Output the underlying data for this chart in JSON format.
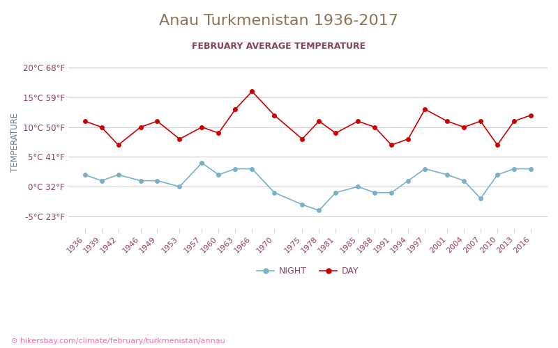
{
  "title": "Anau Turkmenistan 1936-2017",
  "subtitle": "FEBRUARY AVERAGE TEMPERATURE",
  "ylabel": "TEMPERATURE",
  "xlabel_url": "hikersbay.com/climate/february/turkmenistan/annau",
  "yticks_c": [
    20,
    15,
    10,
    5,
    0,
    -5
  ],
  "yticks_f": [
    68,
    59,
    50,
    41,
    32,
    23
  ],
  "ylim": [
    -7,
    22
  ],
  "years": [
    1936,
    1939,
    1942,
    1946,
    1949,
    1953,
    1957,
    1960,
    1963,
    1966,
    1970,
    1975,
    1978,
    1981,
    1985,
    1988,
    1991,
    1994,
    1997,
    2001,
    2004,
    2007,
    2010,
    2013,
    2016
  ],
  "day_temps": [
    11,
    10,
    7,
    10,
    11,
    8,
    10,
    9,
    13,
    16,
    12,
    8,
    11,
    9,
    11,
    10,
    7,
    8,
    13,
    11,
    10,
    11,
    7,
    11,
    12
  ],
  "night_temps": [
    2,
    1,
    2,
    1,
    1,
    0,
    4,
    2,
    3,
    3,
    -1,
    -3,
    -4,
    -1,
    0,
    -1,
    -1,
    1,
    3,
    2,
    1,
    -2,
    2,
    3,
    3
  ],
  "day_color": "#cc0000",
  "night_color": "#7ab0c8",
  "title_color": "#8b7355",
  "subtitle_color": "#8b4058",
  "tick_color": "#8b4058",
  "ylabel_color": "#6b7a8d",
  "grid_color": "#d0d0d0",
  "bg_color": "#ffffff",
  "url_color": "#ff69b4",
  "legend_night": "NIGHT",
  "legend_day": "DAY"
}
